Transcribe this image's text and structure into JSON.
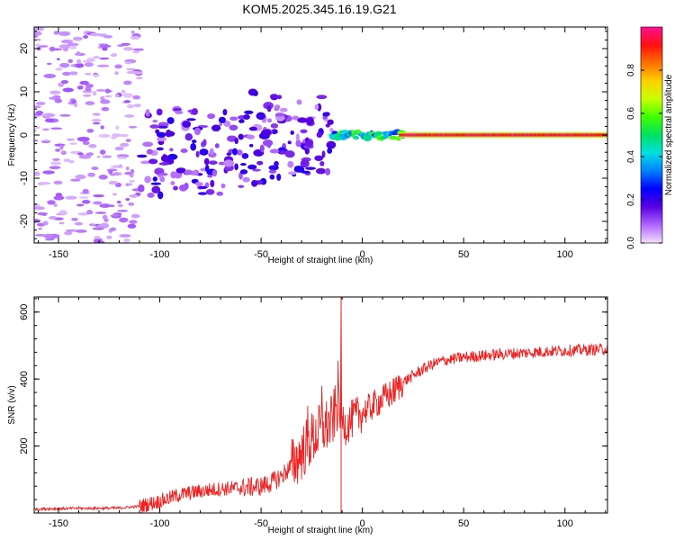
{
  "title": "KOM5.2025.345.16.19.G21",
  "chart_data": [
    {
      "type": "heatmap",
      "xlabel": "Height of straight line (km)",
      "ylabel": "Frequency (Hz)",
      "xlim": [
        -162,
        121
      ],
      "ylim": [
        -25,
        25
      ],
      "xticks": [
        -150,
        -100,
        -50,
        0,
        50,
        100
      ],
      "yticks": [
        -20,
        -10,
        0,
        10,
        20
      ],
      "colorbar": {
        "label": "Normalized spectral amplitude",
        "range": [
          0,
          1
        ],
        "ticks": [
          "0.0",
          "0.2",
          "0.4",
          "0.6",
          "0.8"
        ],
        "colormap": [
          "#f2e0ff",
          "#b066ff",
          "#5a00e0",
          "#0000ff",
          "#0080ff",
          "#00e0e0",
          "#00e060",
          "#40ff00",
          "#c8ff00",
          "#ffd000",
          "#ff7000",
          "#ff1010",
          "#ff1090"
        ]
      },
      "description_regions": [
        {
          "x_range": [
            -162,
            -110
          ],
          "f_range": [
            -25,
            25
          ],
          "amplitude": 0.03
        },
        {
          "x_range": [
            -110,
            -60
          ],
          "f_range": [
            -14,
            5
          ],
          "amplitude": 0.12
        },
        {
          "x_range": [
            -60,
            -15
          ],
          "f_range": [
            -12,
            14
          ],
          "amplitude": 0.15
        },
        {
          "x_range": [
            -15,
            20
          ],
          "f_range": [
            -2,
            2
          ],
          "amplitude": 0.4
        },
        {
          "x_range": [
            20,
            121
          ],
          "f_range": [
            -0.5,
            0.5
          ],
          "amplitude": 0.95
        }
      ]
    },
    {
      "type": "line",
      "xlabel": "Height of straight line (km)",
      "ylabel": "SNR (v/v)",
      "xlim": [
        -162,
        121
      ],
      "ylim": [
        0,
        645
      ],
      "xticks": [
        -150,
        -100,
        -50,
        0,
        50,
        100
      ],
      "yticks": [
        200,
        400,
        600
      ],
      "series": [
        {
          "name": "SNR",
          "color": "#ee2222",
          "x": [
            -162,
            -150,
            -140,
            -130,
            -120,
            -110,
            -100,
            -90,
            -80,
            -70,
            -60,
            -50,
            -45,
            -40,
            -35,
            -30,
            -25,
            -20,
            -15,
            -12,
            -10,
            -8,
            -5,
            0,
            5,
            10,
            15,
            20,
            25,
            30,
            35,
            40,
            50,
            60,
            70,
            80,
            90,
            100,
            110,
            121
          ],
          "values": [
            12,
            13,
            14,
            14,
            15,
            20,
            35,
            55,
            65,
            72,
            75,
            80,
            90,
            110,
            140,
            180,
            220,
            250,
            270,
            330,
            280,
            260,
            280,
            300,
            320,
            340,
            360,
            390,
            410,
            430,
            445,
            455,
            465,
            470,
            475,
            478,
            482,
            485,
            487,
            490
          ],
          "spikes": [
            {
              "x": -10.5,
              "value": 645
            },
            {
              "x": -12,
              "value": 455
            },
            {
              "x": -20,
              "value": 380
            },
            {
              "x": -27,
              "value": 320
            }
          ]
        }
      ]
    }
  ]
}
